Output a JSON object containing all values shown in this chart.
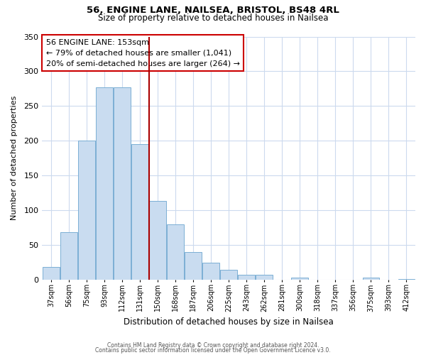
{
  "title1": "56, ENGINE LANE, NAILSEA, BRISTOL, BS48 4RL",
  "title2": "Size of property relative to detached houses in Nailsea",
  "xlabel": "Distribution of detached houses by size in Nailsea",
  "ylabel": "Number of detached properties",
  "bar_labels": [
    "37sqm",
    "56sqm",
    "75sqm",
    "93sqm",
    "112sqm",
    "131sqm",
    "150sqm",
    "168sqm",
    "187sqm",
    "206sqm",
    "225sqm",
    "243sqm",
    "262sqm",
    "281sqm",
    "300sqm",
    "318sqm",
    "337sqm",
    "356sqm",
    "375sqm",
    "393sqm",
    "412sqm"
  ],
  "bar_values": [
    18,
    68,
    200,
    277,
    277,
    195,
    113,
    79,
    40,
    24,
    14,
    7,
    7,
    0,
    3,
    0,
    0,
    0,
    3,
    0,
    1
  ],
  "bar_color": "#c9dcf0",
  "bar_edge_color": "#7bafd4",
  "vline_index": 6,
  "vline_color": "#aa0000",
  "annotation_title": "56 ENGINE LANE: 153sqm",
  "annotation_line1": "← 79% of detached houses are smaller (1,041)",
  "annotation_line2": "20% of semi-detached houses are larger (264) →",
  "annotation_box_color": "#ffffff",
  "annotation_box_edge": "#cc0000",
  "ylim": [
    0,
    350
  ],
  "yticks": [
    0,
    50,
    100,
    150,
    200,
    250,
    300,
    350
  ],
  "footer1": "Contains HM Land Registry data © Crown copyright and database right 2024.",
  "footer2": "Contains public sector information licensed under the Open Government Licence v3.0.",
  "bg_color": "#ffffff",
  "grid_color": "#ccdaee"
}
